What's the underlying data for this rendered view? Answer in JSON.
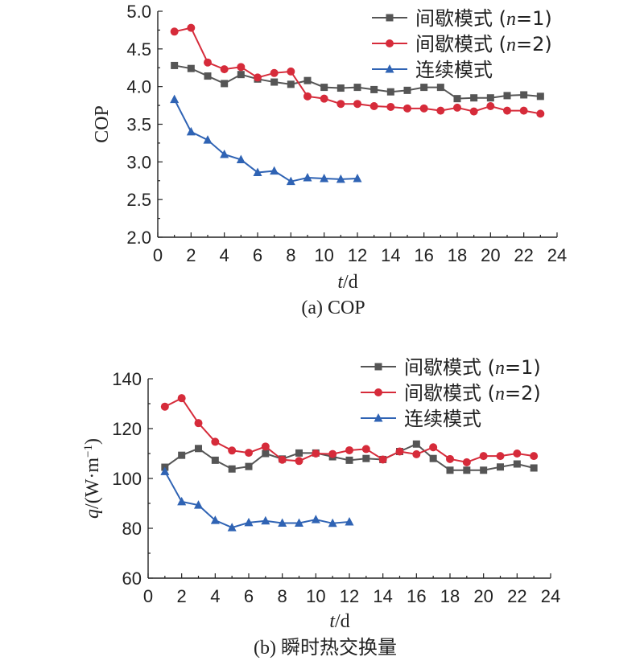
{
  "chart_data": [
    {
      "type": "line",
      "caption": "(a) COP",
      "xlabel_var": "t",
      "xlabel_unit": "/d",
      "ylabel": "COP",
      "xlim": [
        0,
        24
      ],
      "ylim": [
        2.0,
        5.0
      ],
      "xticks": [
        0,
        2,
        4,
        6,
        8,
        10,
        12,
        14,
        16,
        18,
        20,
        22,
        24
      ],
      "xtick_labels": [
        "0",
        "2",
        "4",
        "6",
        "8",
        "10",
        "12",
        "14",
        "16",
        "18",
        "20",
        "22",
        "24"
      ],
      "yticks": [
        2.0,
        2.5,
        3.0,
        3.5,
        4.0,
        4.5,
        5.0
      ],
      "ytick_labels": [
        "2.0",
        "2.5",
        "3.0",
        "3.5",
        "4.0",
        "4.5",
        "5.0"
      ],
      "legend_position": "top-right",
      "series": [
        {
          "name_prefix": "间歇模式 (",
          "name_var": "n",
          "name_suffix": "=1)",
          "marker": "square",
          "color": "#555555",
          "x": [
            1,
            2,
            3,
            4,
            5,
            6,
            7,
            8,
            9,
            10,
            11,
            12,
            13,
            14,
            15,
            16,
            17,
            18,
            19,
            20,
            21,
            22,
            23
          ],
          "values": [
            4.28,
            4.24,
            4.14,
            4.04,
            4.16,
            4.1,
            4.06,
            4.03,
            4.08,
            3.99,
            3.98,
            3.99,
            3.96,
            3.93,
            3.95,
            3.99,
            3.99,
            3.84,
            3.85,
            3.85,
            3.88,
            3.89,
            3.87
          ]
        },
        {
          "name_prefix": "间歇模式 (",
          "name_var": "n",
          "name_suffix": "=2)",
          "marker": "circle",
          "color": "#d62b3a",
          "x": [
            1,
            2,
            3,
            4,
            5,
            6,
            7,
            8,
            9,
            10,
            11,
            12,
            13,
            14,
            15,
            16,
            17,
            18,
            19,
            20,
            21,
            22,
            23
          ],
          "values": [
            4.73,
            4.78,
            4.32,
            4.23,
            4.26,
            4.12,
            4.18,
            4.2,
            3.87,
            3.84,
            3.77,
            3.77,
            3.74,
            3.73,
            3.71,
            3.71,
            3.68,
            3.72,
            3.67,
            3.74,
            3.68,
            3.68,
            3.64
          ]
        },
        {
          "name": "连续模式",
          "marker": "triangle",
          "color": "#2f63b4",
          "x": [
            1,
            2,
            3,
            4,
            5,
            6,
            7,
            8,
            9,
            10,
            11,
            12
          ],
          "values": [
            3.83,
            3.4,
            3.29,
            3.1,
            3.03,
            2.86,
            2.88,
            2.74,
            2.79,
            2.78,
            2.77,
            2.78
          ]
        }
      ]
    },
    {
      "type": "line",
      "caption": "(b) 瞬时热交换量",
      "xlabel_var": "t",
      "xlabel_unit": "/d",
      "ylabel_var": "q",
      "ylabel_unit": "/(W·m",
      "ylabel_exp": "−1",
      "ylabel_close": ")",
      "xlim": [
        0,
        24
      ],
      "ylim": [
        60,
        140
      ],
      "xticks": [
        0,
        2,
        4,
        6,
        8,
        10,
        12,
        14,
        16,
        18,
        20,
        22,
        24
      ],
      "xtick_labels": [
        "0",
        "2",
        "4",
        "6",
        "8",
        "10",
        "12",
        "14",
        "16",
        "18",
        "20",
        "22",
        "24"
      ],
      "yticks": [
        60,
        80,
        100,
        120,
        140
      ],
      "ytick_labels": [
        "60",
        "80",
        "100",
        "120",
        "140"
      ],
      "legend_position": "top-right",
      "series": [
        {
          "name_prefix": "间歇模式 (",
          "name_var": "n",
          "name_suffix": "=1)",
          "marker": "square",
          "color": "#555555",
          "x": [
            1,
            2,
            3,
            4,
            5,
            6,
            7,
            8,
            9,
            10,
            11,
            12,
            13,
            14,
            15,
            16,
            17,
            18,
            19,
            20,
            21,
            22,
            23
          ],
          "values": [
            104.5,
            109.3,
            112.0,
            107.3,
            103.8,
            104.8,
            110.0,
            107.8,
            110.2,
            110.2,
            108.7,
            107.3,
            108.0,
            107.6,
            110.8,
            113.8,
            108.0,
            103.3,
            103.3,
            103.3,
            104.6,
            105.8,
            104.2
          ]
        },
        {
          "name_prefix": "间歇模式 (",
          "name_var": "n",
          "name_suffix": "=2)",
          "marker": "circle",
          "color": "#d62b3a",
          "x": [
            1,
            2,
            3,
            4,
            5,
            6,
            7,
            8,
            9,
            10,
            11,
            12,
            13,
            14,
            15,
            16,
            17,
            18,
            19,
            20,
            21,
            22,
            23
          ],
          "values": [
            128.8,
            132.2,
            122.2,
            114.7,
            111.2,
            110.3,
            112.8,
            107.5,
            107.0,
            110.0,
            109.8,
            111.3,
            111.8,
            107.6,
            110.8,
            109.7,
            112.5,
            107.8,
            106.5,
            109.0,
            109.0,
            110.0,
            109.0
          ]
        },
        {
          "name": "连续模式",
          "marker": "triangle",
          "color": "#2f63b4",
          "x": [
            1,
            2,
            3,
            4,
            5,
            6,
            7,
            8,
            9,
            10,
            11,
            12
          ],
          "values": [
            102.8,
            90.7,
            89.3,
            83.2,
            80.3,
            82.3,
            83.0,
            82.1,
            82.1,
            83.5,
            82.0,
            82.6
          ]
        }
      ]
    }
  ]
}
